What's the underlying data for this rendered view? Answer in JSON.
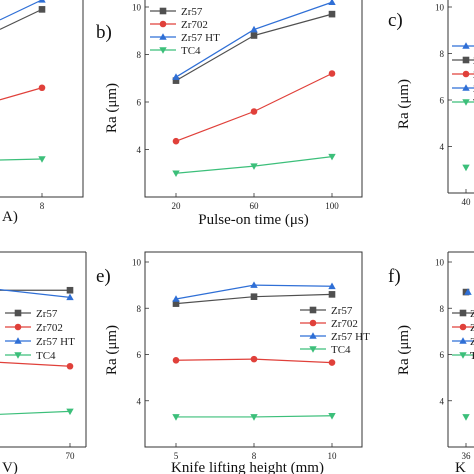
{
  "colors": {
    "Zr57": "#505050",
    "Zr702": "#e0403a",
    "Zr57 HT": "#2f6fd6",
    "TC4": "#3cbf7a"
  },
  "chart_data": [
    {
      "panel": "a",
      "type": "line",
      "x_tick_labels": [
        "8"
      ],
      "x_axis_title_fragment": "A)",
      "ylim": [
        2,
        10
      ],
      "series": [
        {
          "name": "Zr57",
          "x": [
            "8"
          ],
          "values": [
            9.9
          ]
        },
        {
          "name": "Zr702",
          "x": [
            "8"
          ],
          "values": [
            6.6
          ]
        },
        {
          "name": "Zr57 HT",
          "x": [
            "8"
          ],
          "values": [
            10.3
          ]
        },
        {
          "name": "TC4",
          "x": [
            "8"
          ],
          "values": [
            3.6
          ]
        }
      ]
    },
    {
      "panel": "b)",
      "type": "line",
      "x": [
        "20",
        "60",
        "100"
      ],
      "xlabel": "Pulse-on time (μs)",
      "ylabel": "Ra (μm)",
      "ylim": [
        2,
        10
      ],
      "y_ticks": [
        "4",
        "6",
        "8",
        "10"
      ],
      "legend": "top-left",
      "series": [
        {
          "name": "Zr57",
          "values": [
            6.9,
            8.8,
            9.7
          ]
        },
        {
          "name": "Zr702",
          "values": [
            4.35,
            5.6,
            7.2
          ]
        },
        {
          "name": "Zr57 HT",
          "values": [
            7.05,
            9.05,
            10.2
          ]
        },
        {
          "name": "TC4",
          "values": [
            3.0,
            3.3,
            3.7
          ]
        }
      ]
    },
    {
      "panel": "c)",
      "type": "line",
      "x_tick_labels": [
        "40"
      ],
      "ylabel": "Ra (μm)",
      "ylim": [
        2,
        10
      ],
      "y_ticks": [
        "4",
        "6",
        "8",
        "10"
      ],
      "legend_partial": [
        "Zr",
        "Zr",
        "Zr",
        "TC"
      ],
      "series": [
        {
          "name": "TC4",
          "x": [
            "40"
          ],
          "values": [
            3.1
          ]
        }
      ]
    },
    {
      "panel": "d",
      "type": "line",
      "x_tick_labels": [
        "70"
      ],
      "x_axis_title_fragment": "V)",
      "ylim": [
        2,
        10
      ],
      "legend": "right",
      "series": [
        {
          "name": "Zr57",
          "x": [
            "70"
          ],
          "values": [
            8.6
          ]
        },
        {
          "name": "Zr702",
          "x": [
            "70"
          ],
          "values": [
            5.4
          ]
        },
        {
          "name": "Zr57 HT",
          "x": [
            "70"
          ],
          "values": [
            8.3
          ]
        },
        {
          "name": "TC4",
          "x": [
            "70"
          ],
          "values": [
            3.5
          ]
        }
      ]
    },
    {
      "panel": "e)",
      "type": "line",
      "x": [
        "5",
        "8",
        "10"
      ],
      "xlabel": "Knife lifting height (mm)",
      "ylabel": "Ra (μm)",
      "ylim": [
        2,
        10
      ],
      "y_ticks": [
        "4",
        "6",
        "8",
        "10"
      ],
      "legend": "right",
      "series": [
        {
          "name": "Zr57",
          "values": [
            8.2,
            8.5,
            8.6
          ]
        },
        {
          "name": "Zr702",
          "values": [
            5.75,
            5.8,
            5.65
          ]
        },
        {
          "name": "Zr57 HT",
          "values": [
            8.4,
            9.0,
            8.95
          ]
        },
        {
          "name": "TC4",
          "values": [
            3.3,
            3.3,
            3.35
          ]
        }
      ]
    },
    {
      "panel": "f)",
      "type": "line",
      "x_tick_labels": [
        "36"
      ],
      "x_axis_title_fragment": "K",
      "ylabel": "Ra (μm)",
      "ylim": [
        2,
        10
      ],
      "y_ticks": [
        "4",
        "6",
        "8",
        "10"
      ],
      "legend_partial": [
        "Zr",
        "Zr",
        "Zr",
        "T"
      ],
      "series": [
        {
          "name": "Zr57",
          "x": [
            "36"
          ],
          "values": [
            8.7
          ]
        },
        {
          "name": "TC4",
          "x": [
            "36"
          ],
          "values": [
            3.3
          ]
        }
      ]
    }
  ]
}
